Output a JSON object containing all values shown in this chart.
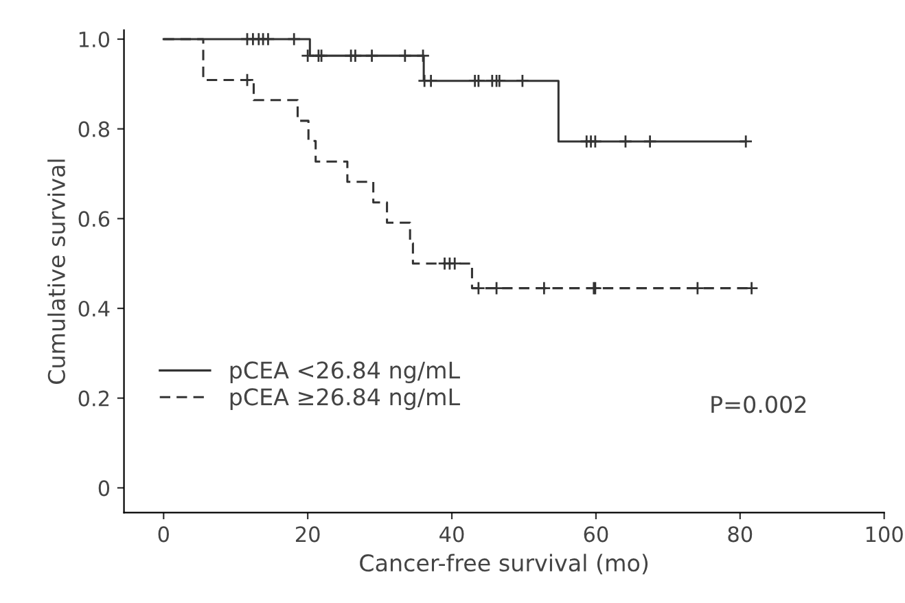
{
  "chart_data": {
    "type": "step",
    "xlabel": "Cancer-free survival (mo)",
    "ylabel": "Cumulative survival",
    "xlim": [
      -5.5,
      100
    ],
    "ylim": [
      -0.055,
      1.02
    ],
    "xticks": [
      0,
      20,
      40,
      60,
      80,
      100
    ],
    "yticks": [
      0,
      {
        "value": 0.2,
        "label": "0.2"
      },
      {
        "value": 0.4,
        "label": "0.4"
      },
      {
        "value": 0.6,
        "label": "0.6"
      },
      {
        "value": 0.8,
        "label": "0.8"
      },
      {
        "value": 1,
        "label": "1.0"
      }
    ],
    "grid": false,
    "legend": "bottom left",
    "annotations": [
      "P=0.002"
    ],
    "series": [
      {
        "name": "pCEA <26.84 ng/mL",
        "color": "#333333",
        "line_style": "solid",
        "x": [
          0,
          20.3,
          36.1,
          54.8,
          80.8
        ],
        "values": [
          1.0,
          0.963,
          0.907,
          0.772,
          0.772
        ]
      },
      {
        "name": "pCEA ≥26.84 ng/mL",
        "color": "#333333",
        "line_style": "dashed",
        "x": [
          0,
          5.5,
          12.5,
          18.6,
          20.1,
          21.1,
          25.5,
          29.1,
          31.0,
          34.2,
          34.6,
          42.8,
          81.6
        ],
        "values": [
          1.0,
          0.909,
          0.864,
          0.818,
          0.773,
          0.727,
          0.682,
          0.636,
          0.591,
          0.545,
          0.5,
          0.445,
          0.445
        ]
      },
      {
        "type": "scatter",
        "marker": "cross",
        "color": "#333333",
        "x": [
          11.6,
          12.4,
          13.2,
          13.8,
          14.5,
          18.1
        ],
        "values": [
          1.0,
          1.0,
          1.0,
          1.0,
          1.0,
          1.0
        ]
      },
      {
        "type": "scatter",
        "marker": "cross",
        "color": "#333333",
        "x": [
          20.0,
          21.5,
          21.9,
          26.0,
          26.6,
          28.9,
          33.5,
          36.0
        ],
        "values": [
          0.963,
          0.963,
          0.963,
          0.963,
          0.963,
          0.963,
          0.963,
          0.963
        ]
      },
      {
        "type": "scatter",
        "marker": "cross",
        "color": "#333333",
        "x": [
          36.2,
          37.1,
          43.2,
          43.7,
          45.6,
          46.2,
          46.6,
          49.8
        ],
        "values": [
          0.907,
          0.907,
          0.907,
          0.907,
          0.907,
          0.907,
          0.907,
          0.907
        ]
      },
      {
        "type": "scatter",
        "marker": "cross",
        "color": "#333333",
        "x": [
          58.7,
          59.3,
          59.9,
          64.1,
          67.5,
          80.8
        ],
        "values": [
          0.772,
          0.772,
          0.772,
          0.772,
          0.772,
          0.772
        ]
      },
      {
        "type": "scatter",
        "marker": "cross",
        "color": "#333333",
        "x": [
          11.6
        ],
        "values": [
          0.909
        ]
      },
      {
        "type": "scatter",
        "marker": "cross",
        "color": "#333333",
        "x": [
          39.0,
          39.7,
          40.4
        ],
        "values": [
          0.5,
          0.5,
          0.5
        ]
      },
      {
        "type": "scatter",
        "marker": "cross",
        "color": "#333333",
        "x": [
          43.7,
          46.2,
          52.8,
          59.7,
          59.9,
          74.1,
          81.6
        ],
        "values": [
          0.445,
          0.445,
          0.445,
          0.445,
          0.445,
          0.445,
          0.445
        ]
      }
    ]
  }
}
